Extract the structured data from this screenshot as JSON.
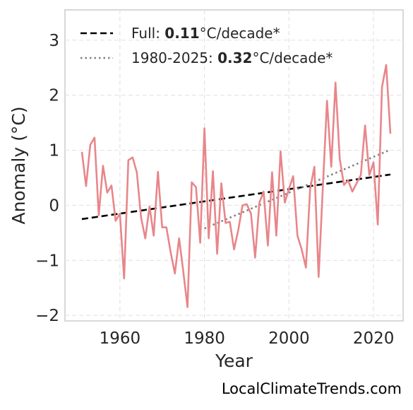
{
  "chart_data": {
    "type": "line",
    "title": "",
    "xlabel": "Year",
    "ylabel": "Anomaly (°C)",
    "xlim": [
      1947,
      2027
    ],
    "ylim": [
      -2.1,
      3.55
    ],
    "xticks": [
      1960,
      1980,
      2000,
      2020
    ],
    "xtick_labels": [
      "1960",
      "1980",
      "2000",
      "2020"
    ],
    "yticks": [
      -2,
      -1,
      0,
      1,
      2,
      3
    ],
    "ytick_labels": [
      "−2",
      "−1",
      "0",
      "1",
      "2",
      "3"
    ],
    "grid": true,
    "legend_position": "top-left",
    "colors": {
      "series": "#e8868a",
      "full_trend": "#000000",
      "recent_trend": "#808080"
    },
    "x": [
      1951,
      1952,
      1953,
      1954,
      1955,
      1956,
      1957,
      1958,
      1959,
      1960,
      1961,
      1962,
      1963,
      1964,
      1965,
      1966,
      1967,
      1968,
      1969,
      1970,
      1971,
      1972,
      1973,
      1974,
      1975,
      1976,
      1977,
      1978,
      1979,
      1980,
      1981,
      1982,
      1983,
      1984,
      1985,
      1986,
      1987,
      1988,
      1989,
      1990,
      1991,
      1992,
      1993,
      1994,
      1995,
      1996,
      1997,
      1998,
      1999,
      2000,
      2001,
      2002,
      2003,
      2004,
      2005,
      2006,
      2007,
      2008,
      2009,
      2010,
      2011,
      2012,
      2013,
      2014,
      2015,
      2016,
      2017,
      2018,
      2019,
      2020,
      2021,
      2022,
      2023,
      2024
    ],
    "series": [
      {
        "values": [
          0.97,
          0.35,
          1.1,
          1.23,
          -0.18,
          0.72,
          0.23,
          0.36,
          -0.28,
          -0.15,
          -1.33,
          0.82,
          0.87,
          0.6,
          -0.22,
          -0.6,
          -0.02,
          -0.55,
          0.61,
          -0.4,
          -0.4,
          -0.85,
          -1.24,
          -0.6,
          -1.2,
          -1.85,
          0.42,
          0.33,
          -0.68,
          1.4,
          -0.6,
          0.62,
          -0.88,
          0.4,
          -0.32,
          -0.3,
          -0.8,
          -0.45,
          0.0,
          0.02,
          -0.15,
          -0.95,
          0.05,
          0.25,
          -0.73,
          0.6,
          -0.55,
          0.98,
          0.05,
          0.3,
          0.53,
          -0.55,
          -0.8,
          -1.13,
          0.3,
          0.7,
          -1.3,
          0.3,
          1.9,
          0.7,
          2.23,
          0.85,
          0.37,
          0.45,
          0.25,
          0.4,
          0.55,
          1.45,
          0.55,
          0.78,
          -0.35,
          2.15,
          2.55,
          1.3
        ]
      }
    ],
    "trend_full": {
      "x": [
        1951,
        2024
      ],
      "y": [
        -0.25,
        0.56
      ]
    },
    "trend_recent": {
      "x": [
        1980,
        2024
      ],
      "y": [
        -0.42,
        1.01
      ]
    },
    "legend": [
      {
        "prefix": "Full: ",
        "value": "0.11",
        "suffix": "°C/decade*",
        "style": "dashed"
      },
      {
        "prefix": "1980-2025: ",
        "value": "0.32",
        "suffix": "°C/decade*",
        "style": "dotted"
      }
    ]
  },
  "watermark": "LocalClimateTrends.com"
}
